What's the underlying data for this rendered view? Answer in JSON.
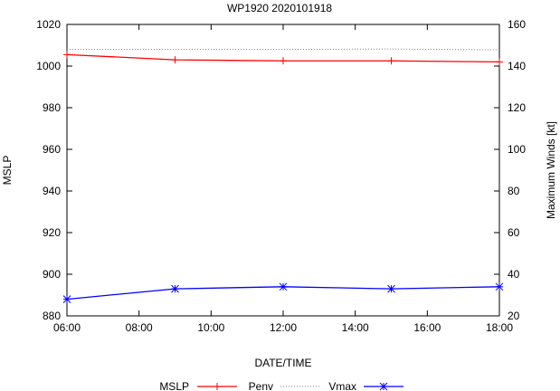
{
  "chart_data": {
    "type": "line",
    "title": "WP1920 2020101918",
    "xlabel": "DATE/TIME",
    "ylabel": "MSLP",
    "y2label": "Maximum Winds [kt]",
    "x_ticks": [
      "06:00",
      "08:00",
      "10:00",
      "12:00",
      "14:00",
      "16:00",
      "18:00"
    ],
    "x_hours": [
      6,
      8,
      10,
      12,
      14,
      16,
      18
    ],
    "xlim": [
      6,
      18
    ],
    "y_ticks": [
      880,
      900,
      920,
      940,
      960,
      980,
      1000,
      1020
    ],
    "ylim": [
      880,
      1020
    ],
    "y2_ticks": [
      20,
      40,
      60,
      80,
      100,
      120,
      140,
      160
    ],
    "y2lim": [
      20,
      160
    ],
    "grid": false,
    "legend_position": "bottom-center",
    "series": [
      {
        "name": "MSLP",
        "axis": "y",
        "color": "#ff0000",
        "style": "solid",
        "marker": "plus",
        "x": [
          6,
          9,
          12,
          15,
          18
        ],
        "values": [
          1005.5,
          1003,
          1002.5,
          1002.5,
          1002
        ]
      },
      {
        "name": "Penv",
        "axis": "y",
        "color": "#808080",
        "style": "dotted",
        "marker": "none",
        "x": [
          6,
          9,
          12,
          15,
          18
        ],
        "values": [
          1008,
          1008,
          1008,
          1008.2,
          1007.8
        ]
      },
      {
        "name": "Vmax",
        "axis": "y2",
        "color": "#0000ff",
        "style": "solid",
        "marker": "star",
        "x": [
          6,
          9,
          12,
          15,
          18
        ],
        "values": [
          28,
          33,
          34,
          33,
          34
        ]
      }
    ]
  }
}
